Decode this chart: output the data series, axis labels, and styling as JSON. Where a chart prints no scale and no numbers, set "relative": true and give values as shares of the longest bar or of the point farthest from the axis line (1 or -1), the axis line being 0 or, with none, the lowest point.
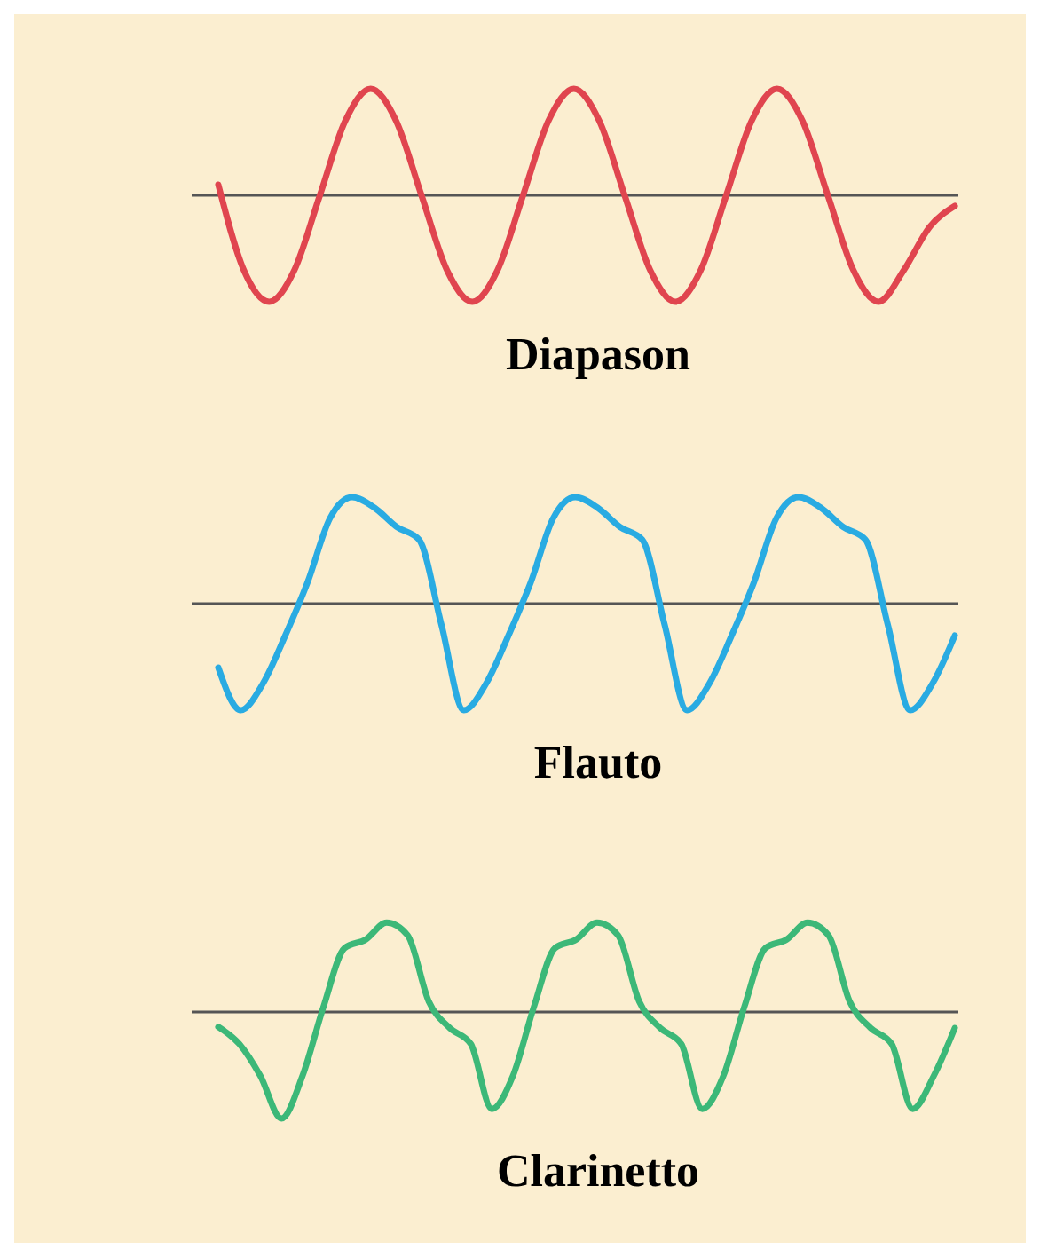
{
  "chart_data": [
    {
      "type": "line",
      "relative": true,
      "xlabel": "Diapason",
      "color": "#e0454f",
      "categories": [
        null,
        null,
        null,
        null,
        null,
        null,
        null,
        null,
        null,
        null,
        null,
        null,
        null,
        null,
        null,
        null,
        null,
        null,
        null,
        null,
        null,
        null,
        null,
        null,
        null,
        null,
        null,
        null,
        null,
        null
      ],
      "values": [
        0.1,
        -0.7,
        -1,
        -0.7,
        0,
        0.7,
        1,
        0.7,
        0,
        -0.7,
        -1,
        -0.7,
        0,
        0.7,
        1,
        0.7,
        0,
        -0.7,
        -1,
        -0.7,
        0,
        0.7,
        1,
        0.7,
        0,
        -0.7,
        -1,
        -0.7,
        -0.3,
        -0.1
      ]
    },
    {
      "type": "line",
      "relative": true,
      "xlabel": "Flauto",
      "color": "#29abe2",
      "categories": [
        null,
        null,
        null,
        null,
        null,
        null,
        null,
        null,
        null,
        null,
        null,
        null,
        null,
        null,
        null,
        null,
        null,
        null,
        null,
        null,
        null,
        null,
        null,
        null,
        null,
        null,
        null,
        null,
        null,
        null,
        null,
        null,
        null,
        null
      ],
      "values": [
        -0.6,
        -1,
        -0.75,
        -0.3,
        0.2,
        0.8,
        1,
        0.9,
        0.72,
        0.6,
        -0.2,
        -1,
        -0.75,
        -0.3,
        0.2,
        0.8,
        1,
        0.9,
        0.72,
        0.6,
        -0.2,
        -1,
        -0.75,
        -0.3,
        0.2,
        0.8,
        1,
        0.9,
        0.72,
        0.6,
        -0.2,
        -1,
        -0.75,
        -0.3
      ]
    },
    {
      "type": "line",
      "relative": true,
      "xlabel": "Clarinetto",
      "color": "#3cb878",
      "categories": [
        null,
        null,
        null,
        null,
        null,
        null,
        null,
        null,
        null,
        null,
        null,
        null,
        null,
        null,
        null,
        null,
        null,
        null,
        null,
        null,
        null,
        null,
        null,
        null,
        null,
        null,
        null,
        null,
        null,
        null,
        null,
        null,
        null,
        null,
        null,
        null
      ],
      "values": [
        -0.14,
        -0.3,
        -0.6,
        -1,
        -0.6,
        0.05,
        0.6,
        0.68,
        0.84,
        0.72,
        0.1,
        -0.15,
        -0.3,
        -0.91,
        -0.6,
        0.05,
        0.6,
        0.68,
        0.84,
        0.72,
        0.1,
        -0.15,
        -0.3,
        -0.91,
        -0.6,
        0.05,
        0.6,
        0.68,
        0.84,
        0.72,
        0.1,
        -0.15,
        -0.3,
        -0.91,
        -0.6,
        -0.15
      ]
    }
  ]
}
